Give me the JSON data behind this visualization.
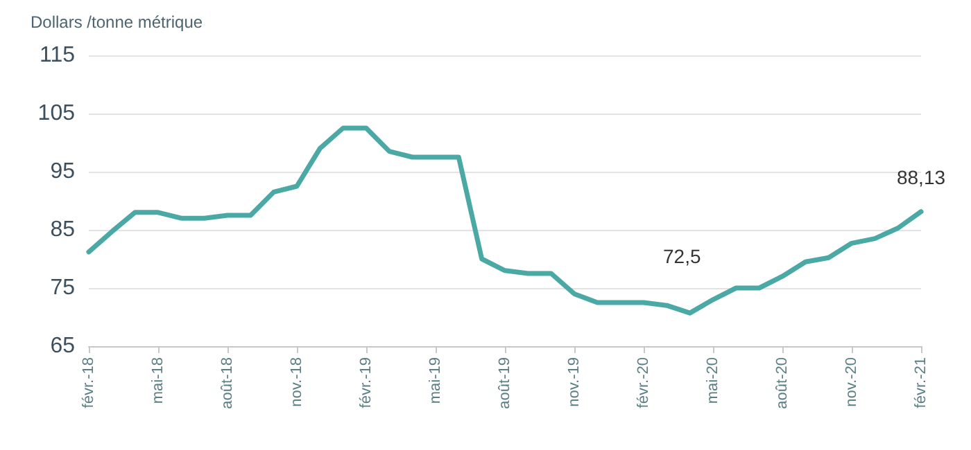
{
  "chart_data": {
    "type": "line",
    "ylabel": "Dollars /tonne métrique",
    "categories": [
      "févr.-18",
      null,
      null,
      "mai-18",
      null,
      null,
      "août-18",
      null,
      null,
      "nov.-18",
      null,
      null,
      "févr.-19",
      null,
      null,
      "mai-19",
      null,
      null,
      "août-19",
      null,
      null,
      "nov.-19",
      null,
      null,
      "févr.-20",
      null,
      null,
      "mai-20",
      null,
      null,
      "août-20",
      null,
      null,
      "nov.-20",
      null,
      null,
      "févr.-21"
    ],
    "series": [
      {
        "color": "#4aa9a4",
        "values": [
          81.2,
          84.7,
          88,
          88,
          87,
          87,
          87.5,
          87.5,
          91.5,
          92.5,
          99,
          102.5,
          102.5,
          98.5,
          97.5,
          97.5,
          97.5,
          80,
          78,
          77.5,
          77.5,
          74,
          72.5,
          72.5,
          72.5,
          72,
          70.7,
          73,
          75,
          75,
          77,
          79.5,
          80.2,
          82.7,
          83.5,
          85.3,
          88.13
        ],
        "value_labels": [
          null,
          null,
          null,
          null,
          null,
          null,
          null,
          null,
          null,
          null,
          null,
          null,
          null,
          null,
          null,
          null,
          null,
          null,
          null,
          null,
          null,
          null,
          null,
          null,
          null,
          null,
          null,
          null,
          null,
          null,
          null,
          null,
          null,
          null,
          null,
          null,
          "88,13"
        ]
      }
    ],
    "annotations": [
      "72,5"
    ],
    "ylim": [
      65,
      115
    ],
    "yticks": [
      65,
      75,
      85,
      95,
      105,
      115
    ],
    "grid": "y",
    "marker": "none",
    "line_style": "solid"
  }
}
